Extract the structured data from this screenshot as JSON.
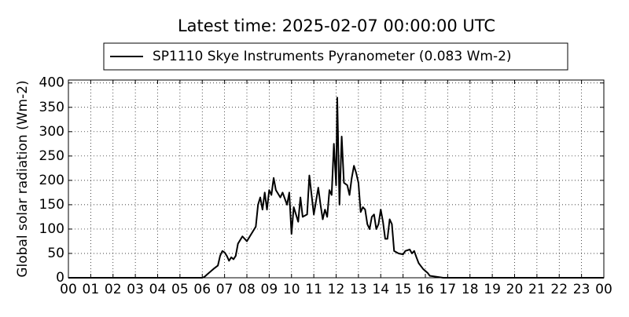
{
  "chart_data": {
    "type": "line",
    "title": "Latest time: 2025-02-07 00:00:00 UTC",
    "y_label": "Global solar radiation (Wm-2)",
    "x": [
      0,
      6.0,
      6.1,
      6.3,
      6.5,
      6.7,
      6.8,
      6.9,
      7.0,
      7.1,
      7.2,
      7.3,
      7.4,
      7.5,
      7.6,
      7.8,
      8.0,
      8.2,
      8.4,
      8.5,
      8.6,
      8.7,
      8.8,
      8.9,
      9.0,
      9.1,
      9.2,
      9.3,
      9.5,
      9.6,
      9.8,
      9.9,
      10.0,
      10.1,
      10.2,
      10.3,
      10.4,
      10.5,
      10.7,
      10.8,
      10.9,
      11.0,
      11.2,
      11.3,
      11.4,
      11.5,
      11.6,
      11.7,
      11.8,
      11.9,
      12.0,
      12.05,
      12.15,
      12.25,
      12.35,
      12.5,
      12.6,
      12.7,
      12.8,
      12.9,
      13.0,
      13.1,
      13.2,
      13.3,
      13.4,
      13.5,
      13.6,
      13.7,
      13.8,
      13.9,
      14.0,
      14.1,
      14.2,
      14.3,
      14.4,
      14.5,
      14.6,
      14.8,
      15.0,
      15.1,
      15.3,
      15.4,
      15.5,
      15.6,
      15.7,
      15.9,
      16.1,
      16.2,
      16.5,
      16.8,
      24
    ],
    "series": [
      {
        "name": "SP1110 Skye Instruments Pyranometer (0.083 Wm-2)",
        "color": "#000000",
        "values": [
          0,
          0,
          2,
          10,
          18,
          25,
          45,
          55,
          52,
          45,
          35,
          42,
          38,
          45,
          70,
          85,
          75,
          90,
          105,
          150,
          165,
          140,
          175,
          140,
          180,
          170,
          205,
          180,
          165,
          175,
          150,
          175,
          90,
          145,
          130,
          115,
          165,
          125,
          130,
          210,
          170,
          130,
          185,
          150,
          120,
          140,
          125,
          180,
          170,
          275,
          190,
          370,
          150,
          290,
          195,
          190,
          170,
          205,
          230,
          215,
          195,
          135,
          145,
          140,
          110,
          100,
          125,
          130,
          100,
          110,
          140,
          115,
          80,
          80,
          120,
          110,
          55,
          50,
          48,
          55,
          58,
          50,
          55,
          42,
          30,
          18,
          10,
          4,
          2,
          0,
          0
        ]
      }
    ],
    "xlim": [
      0,
      24
    ],
    "xticks": [
      {
        "value": 0,
        "label": "00"
      },
      {
        "value": 1,
        "label": "01"
      },
      {
        "value": 2,
        "label": "02"
      },
      {
        "value": 3,
        "label": "03"
      },
      {
        "value": 4,
        "label": "04"
      },
      {
        "value": 5,
        "label": "05"
      },
      {
        "value": 6,
        "label": "06"
      },
      {
        "value": 7,
        "label": "07"
      },
      {
        "value": 8,
        "label": "08"
      },
      {
        "value": 9,
        "label": "09"
      },
      10,
      11,
      12,
      13,
      14,
      15,
      16,
      17,
      18,
      19,
      20,
      21,
      22,
      23,
      {
        "value": 24,
        "label": "00"
      }
    ],
    "ylim": [
      0,
      406
    ],
    "yticks": [
      0,
      50,
      100,
      150,
      200,
      250,
      300,
      350,
      400
    ],
    "grid": true
  }
}
